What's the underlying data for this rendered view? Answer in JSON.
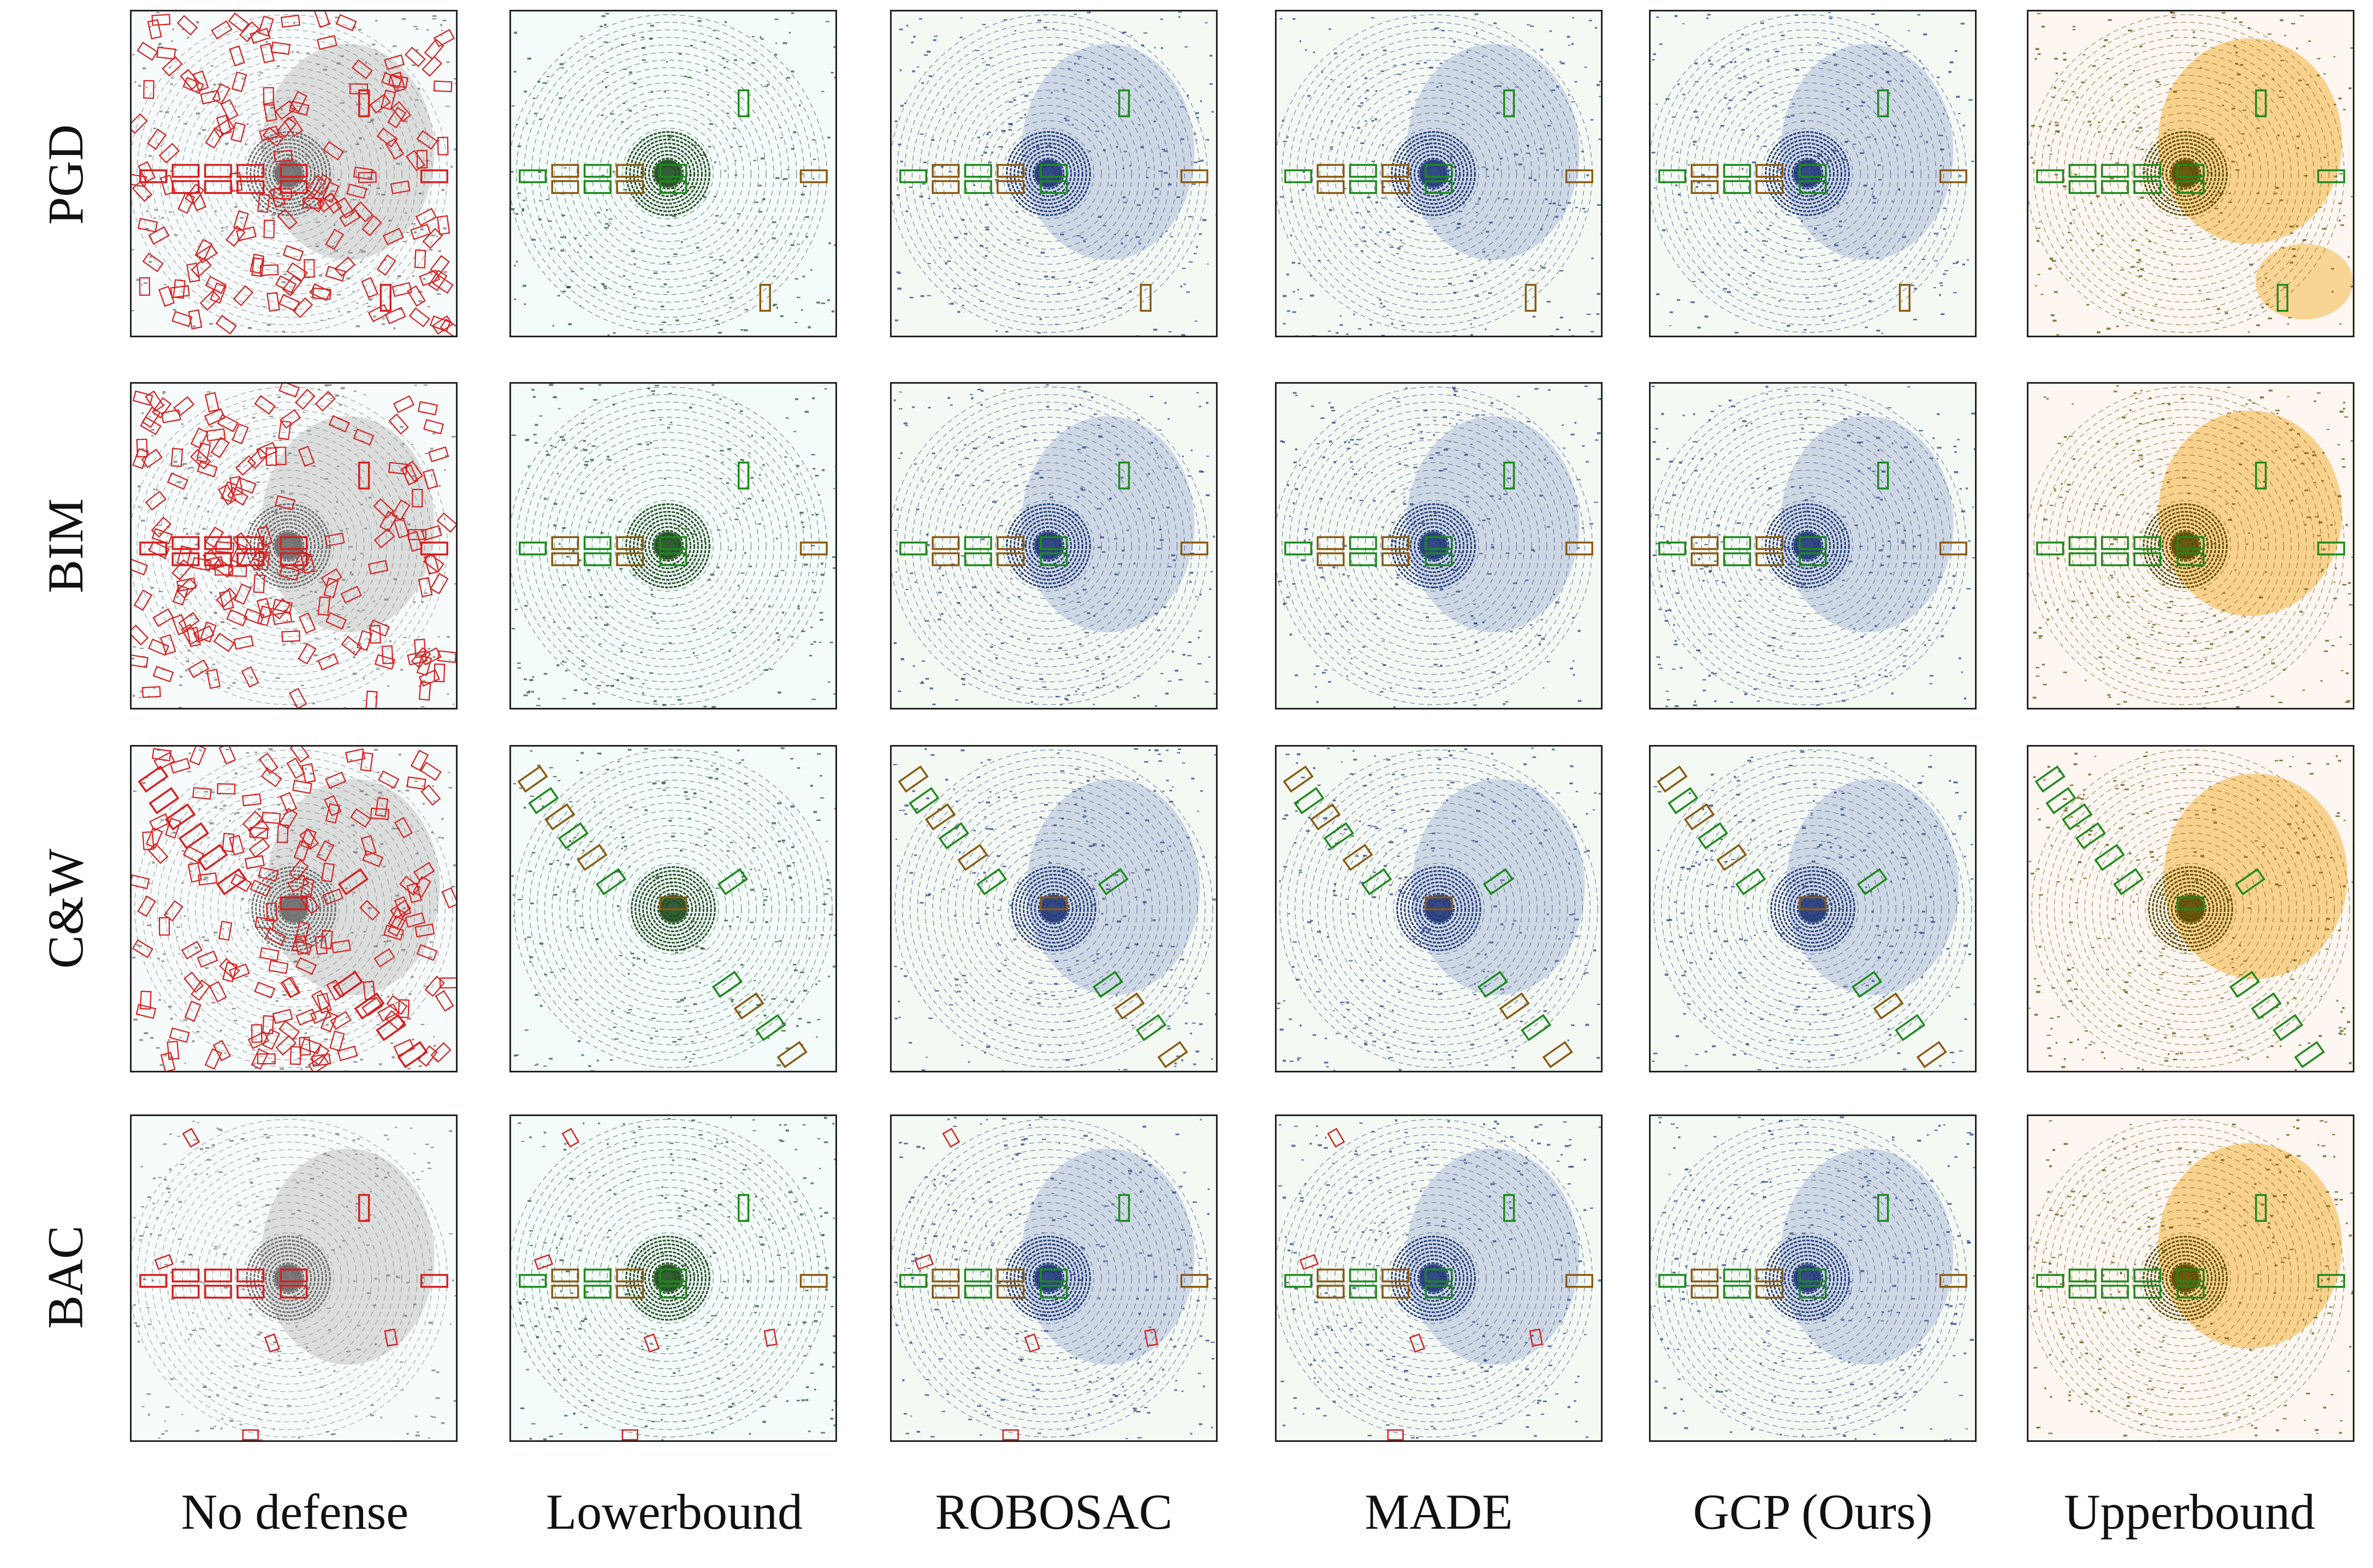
{
  "figure": {
    "rows": [
      "PGD",
      "BIM",
      "C&W",
      "BAC"
    ],
    "columns": [
      "No defense",
      "Lowerbound",
      "ROBOSAC",
      "MADE",
      "GCP (Ours)",
      "Upperbound"
    ]
  },
  "palette": {
    "no_defense_points": "#6d6d6d",
    "lowerbound_points": "#1f4d1f",
    "robosac_points": "#233a7a",
    "made_points": "#233a7a",
    "gcp_points": "#233a7a",
    "upperbound_points": "#5c4a00",
    "upperbound_cloud": "#f4b23a",
    "gt_box": "#1d8a1d",
    "pred_box": "#d91e1e",
    "matched_box": "#8a5a12"
  }
}
